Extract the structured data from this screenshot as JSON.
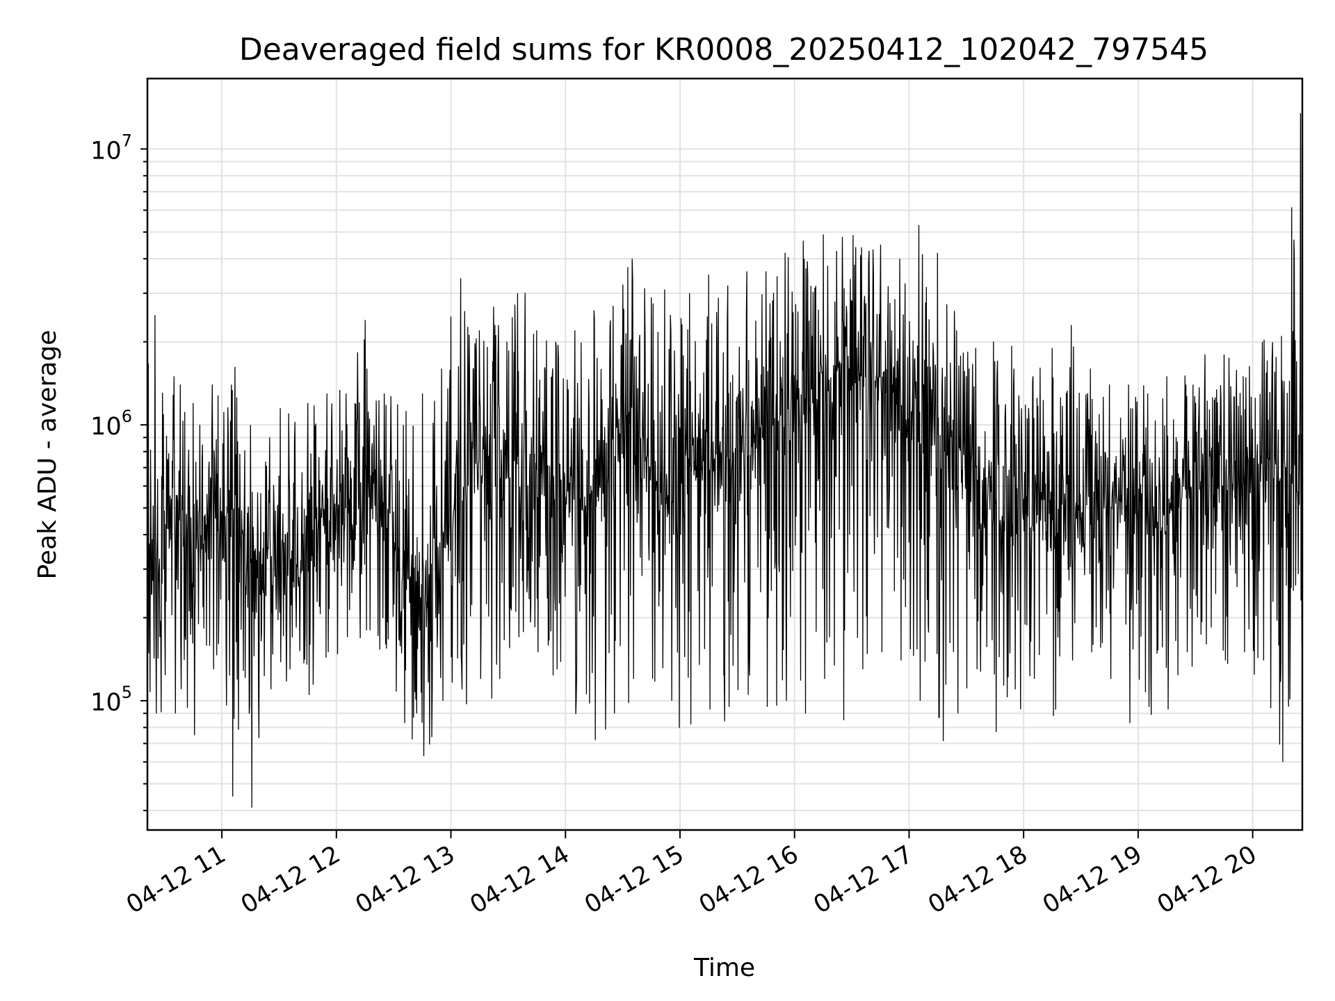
{
  "chart_data": {
    "type": "line",
    "title": "Deaveraged field sums for KR0008_20250412_102042_797545",
    "xlabel": "Time",
    "ylabel": "Peak ADU - average",
    "yscale": "log",
    "ylim": [
      34000,
      18000000
    ],
    "xlim": [
      "2025-04-12 10:21",
      "2025-04-12 20:26"
    ],
    "x_ticks": [
      "04-12 11",
      "04-12 12",
      "04-12 13",
      "04-12 14",
      "04-12 15",
      "04-12 16",
      "04-12 17",
      "04-12 18",
      "04-12 19",
      "04-12 20"
    ],
    "y_ticks": [
      {
        "base": "10",
        "exp": "5",
        "value": 100000
      },
      {
        "base": "10",
        "exp": "6",
        "value": 1000000
      },
      {
        "base": "10",
        "exp": "7",
        "value": 10000000
      }
    ],
    "grid": true,
    "line_color": "#000000",
    "series": [
      {
        "name": "",
        "x": [
          "10:25",
          "10:35",
          "10:45",
          "10:55",
          "11:05",
          "11:15",
          "11:25",
          "11:35",
          "11:45",
          "11:55",
          "12:05",
          "12:15",
          "12:25",
          "12:35",
          "12:45",
          "12:55",
          "13:05",
          "13:15",
          "13:25",
          "13:35",
          "13:45",
          "13:55",
          "14:05",
          "14:15",
          "14:25",
          "14:35",
          "14:45",
          "14:55",
          "15:05",
          "15:15",
          "15:25",
          "15:35",
          "15:45",
          "15:55",
          "16:05",
          "16:15",
          "16:25",
          "16:35",
          "16:45",
          "16:55",
          "17:05",
          "17:15",
          "17:25",
          "17:35",
          "17:45",
          "17:55",
          "18:05",
          "18:15",
          "18:25",
          "18:35",
          "18:45",
          "18:55",
          "19:05",
          "19:15",
          "19:25",
          "19:35",
          "19:45",
          "19:55",
          "20:05",
          "20:15",
          "20:25"
        ],
        "values": [
          300000,
          500000,
          400000,
          450000,
          480000,
          320000,
          300000,
          330000,
          400000,
          450000,
          450000,
          600000,
          550000,
          280000,
          250000,
          400000,
          600000,
          800000,
          700000,
          750000,
          600000,
          650000,
          550000,
          600000,
          800000,
          950000,
          700000,
          650000,
          700000,
          750000,
          800000,
          900000,
          1000000,
          1100000,
          1200000,
          1300000,
          1400000,
          1500000,
          1400000,
          1200000,
          1100000,
          900000,
          700000,
          600000,
          550000,
          500000,
          500000,
          550000,
          450000,
          500000,
          550000,
          500000,
          450000,
          500000,
          550000,
          600000,
          650000,
          600000,
          650000,
          700000,
          650000
        ],
        "upper_envelope": [
          2500000,
          1500000,
          1200000,
          1400000,
          1400000,
          1000000,
          900000,
          1100000,
          1200000,
          1300000,
          1300000,
          2400000,
          1300000,
          1000000,
          1300000,
          1600000,
          3400000,
          2200000,
          2300000,
          3000000,
          2200000,
          2000000,
          2200000,
          2600000,
          2700000,
          4000000,
          2900000,
          2500000,
          3000000,
          3500000,
          3200000,
          3600000,
          3600000,
          4200000,
          4000000,
          4900000,
          4800000,
          4400000,
          4500000,
          4000000,
          5300000,
          4200000,
          2200000,
          1900000,
          1700000,
          1600000,
          1500000,
          1900000,
          2300000,
          1600000,
          1400000,
          1400000,
          1300000,
          1500000,
          1400000,
          1800000,
          1800000,
          1500000,
          2000000,
          2100000,
          13500000
        ],
        "lower_envelope": [
          90000,
          90000,
          75000,
          130000,
          45000,
          41000,
          110000,
          130000,
          105000,
          150000,
          170000,
          180000,
          160000,
          83000,
          63000,
          100000,
          110000,
          120000,
          120000,
          170000,
          150000,
          130000,
          100000,
          72000,
          90000,
          120000,
          120000,
          100000,
          82000,
          93000,
          95000,
          105000,
          95000,
          100000,
          90000,
          120000,
          85000,
          130000,
          150000,
          140000,
          100000,
          87000,
          90000,
          130000,
          77000,
          110000,
          120000,
          88000,
          140000,
          150000,
          120000,
          83000,
          95000,
          93000,
          150000,
          160000,
          140000,
          150000,
          140000,
          60000,
          160000
        ]
      }
    ]
  }
}
